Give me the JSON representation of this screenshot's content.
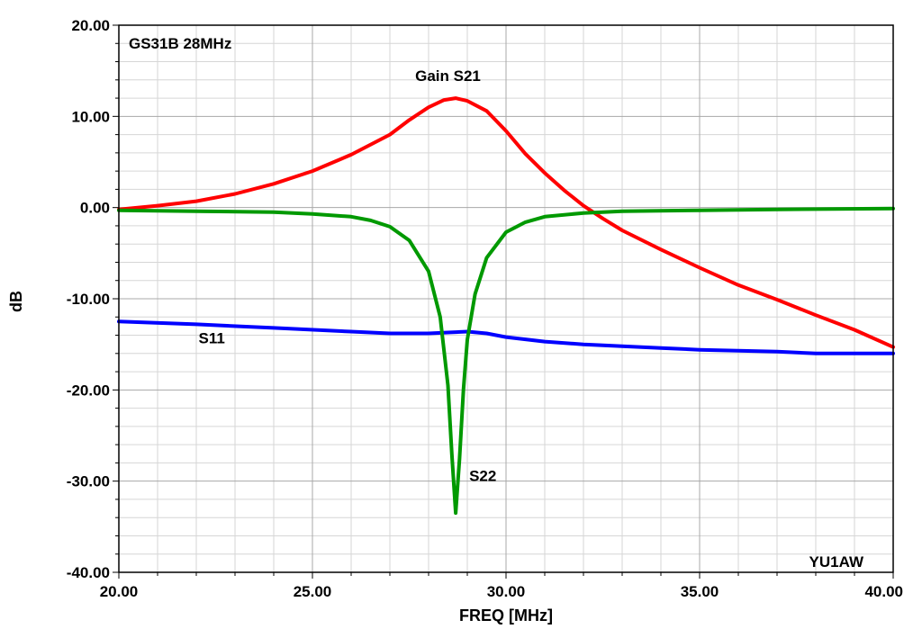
{
  "chart_data": {
    "type": "line",
    "title": "GS31B 28MHz",
    "xlabel": "FREQ [MHz]",
    "ylabel": "dB",
    "xlim": [
      20,
      40
    ],
    "ylim": [
      -40,
      20
    ],
    "x_ticks": [
      "20.00",
      "25.00",
      "30.00",
      "35.00",
      "40.00"
    ],
    "y_ticks": [
      "20.00",
      "10.00",
      "0.00",
      "-10.00",
      "-20.00",
      "-30.00",
      "-40.00"
    ],
    "grid": true,
    "annotation": "YU1AW",
    "series": [
      {
        "name": "Gain S21",
        "color": "#ff0000",
        "points": [
          [
            20.0,
            -0.2
          ],
          [
            21.0,
            0.2
          ],
          [
            22.0,
            0.7
          ],
          [
            23.0,
            1.5
          ],
          [
            24.0,
            2.6
          ],
          [
            25.0,
            4.0
          ],
          [
            26.0,
            5.8
          ],
          [
            27.0,
            8.0
          ],
          [
            27.5,
            9.6
          ],
          [
            28.0,
            11.0
          ],
          [
            28.4,
            11.8
          ],
          [
            28.7,
            12.0
          ],
          [
            29.0,
            11.7
          ],
          [
            29.5,
            10.6
          ],
          [
            30.0,
            8.4
          ],
          [
            30.5,
            5.9
          ],
          [
            31.0,
            3.8
          ],
          [
            31.5,
            1.9
          ],
          [
            32.0,
            0.2
          ],
          [
            32.5,
            -1.2
          ],
          [
            33.0,
            -2.5
          ],
          [
            34.0,
            -4.6
          ],
          [
            35.0,
            -6.6
          ],
          [
            36.0,
            -8.5
          ],
          [
            37.0,
            -10.1
          ],
          [
            38.0,
            -11.8
          ],
          [
            39.0,
            -13.4
          ],
          [
            40.0,
            -15.3
          ]
        ]
      },
      {
        "name": "S22",
        "color": "#009900",
        "points": [
          [
            20.0,
            -0.3
          ],
          [
            22.0,
            -0.4
          ],
          [
            24.0,
            -0.5
          ],
          [
            25.0,
            -0.7
          ],
          [
            26.0,
            -1.0
          ],
          [
            26.5,
            -1.4
          ],
          [
            27.0,
            -2.1
          ],
          [
            27.5,
            -3.6
          ],
          [
            28.0,
            -7.0
          ],
          [
            28.3,
            -12.0
          ],
          [
            28.5,
            -19.5
          ],
          [
            28.6,
            -27.0
          ],
          [
            28.7,
            -33.5
          ],
          [
            28.8,
            -27.5
          ],
          [
            28.9,
            -20.0
          ],
          [
            29.0,
            -14.5
          ],
          [
            29.2,
            -9.5
          ],
          [
            29.5,
            -5.5
          ],
          [
            30.0,
            -2.7
          ],
          [
            30.5,
            -1.6
          ],
          [
            31.0,
            -1.0
          ],
          [
            32.0,
            -0.6
          ],
          [
            33.0,
            -0.4
          ],
          [
            35.0,
            -0.3
          ],
          [
            37.0,
            -0.2
          ],
          [
            40.0,
            -0.1
          ]
        ]
      },
      {
        "name": "S11",
        "color": "#0000ff",
        "points": [
          [
            20.0,
            -12.5
          ],
          [
            22.0,
            -12.8
          ],
          [
            24.0,
            -13.2
          ],
          [
            26.0,
            -13.6
          ],
          [
            27.0,
            -13.8
          ],
          [
            28.0,
            -13.8
          ],
          [
            28.5,
            -13.7
          ],
          [
            29.0,
            -13.6
          ],
          [
            29.5,
            -13.8
          ],
          [
            30.0,
            -14.2
          ],
          [
            31.0,
            -14.7
          ],
          [
            32.0,
            -15.0
          ],
          [
            33.0,
            -15.2
          ],
          [
            34.0,
            -15.4
          ],
          [
            35.0,
            -15.6
          ],
          [
            36.0,
            -15.7
          ],
          [
            37.0,
            -15.8
          ],
          [
            38.0,
            -16.0
          ],
          [
            39.0,
            -16.0
          ],
          [
            40.0,
            -16.0
          ]
        ]
      }
    ],
    "series_labels": [
      {
        "text": "Gain S21",
        "x": 28.5,
        "y": 13.9
      },
      {
        "text": "S22",
        "x": 29.4,
        "y": -30.0
      },
      {
        "text": "S11",
        "x": 22.4,
        "y": -14.9
      }
    ]
  }
}
